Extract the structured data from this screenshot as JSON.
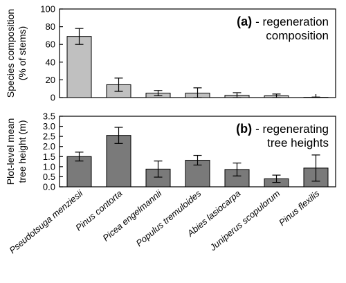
{
  "chart_data": [
    {
      "type": "bar",
      "panel": "a",
      "label_tag": "(a)",
      "label_lines": [
        "- regeneration",
        "composition"
      ],
      "ylabel_lines": [
        "Species composition",
        "(% of stems)"
      ],
      "ylim": [
        0,
        100
      ],
      "yticks": [
        0,
        20,
        40,
        60,
        80,
        100
      ],
      "categories": [
        "Pseudotsuga menziesii",
        "Pinus contorta",
        "Picea engelmannii",
        "Populus tremuloides",
        "Abies lasiocarpa",
        "Juniperus scopulorum",
        "Pinus flexilis"
      ],
      "values": [
        69,
        14.5,
        5,
        5,
        2.5,
        2,
        0.3
      ],
      "errors": [
        9,
        7.5,
        3,
        6,
        3,
        2,
        0.3
      ],
      "bar_color": "#c0c0c0",
      "grid": false
    },
    {
      "type": "bar",
      "panel": "b",
      "label_tag": "(b)",
      "label_lines": [
        "- regenerating",
        "tree heights"
      ],
      "ylabel_lines": [
        "Plot-level mean",
        "tree height (m)"
      ],
      "ylim": [
        0,
        3.5
      ],
      "yticks": [
        0.0,
        0.5,
        1.0,
        1.5,
        2.0,
        2.5,
        3.0,
        3.5
      ],
      "categories": [
        "Pseudotsuga menziesii",
        "Pinus contorta",
        "Picea engelmannii",
        "Populus tremuloides",
        "Abies lasiocarpa",
        "Juniperus scopulorum",
        "Pinus flexilis"
      ],
      "values": [
        1.5,
        2.55,
        0.88,
        1.32,
        0.86,
        0.4,
        0.93
      ],
      "errors": [
        0.22,
        0.4,
        0.4,
        0.24,
        0.32,
        0.18,
        0.65
      ],
      "bar_color": "#7a7a7a",
      "grid": false
    }
  ]
}
